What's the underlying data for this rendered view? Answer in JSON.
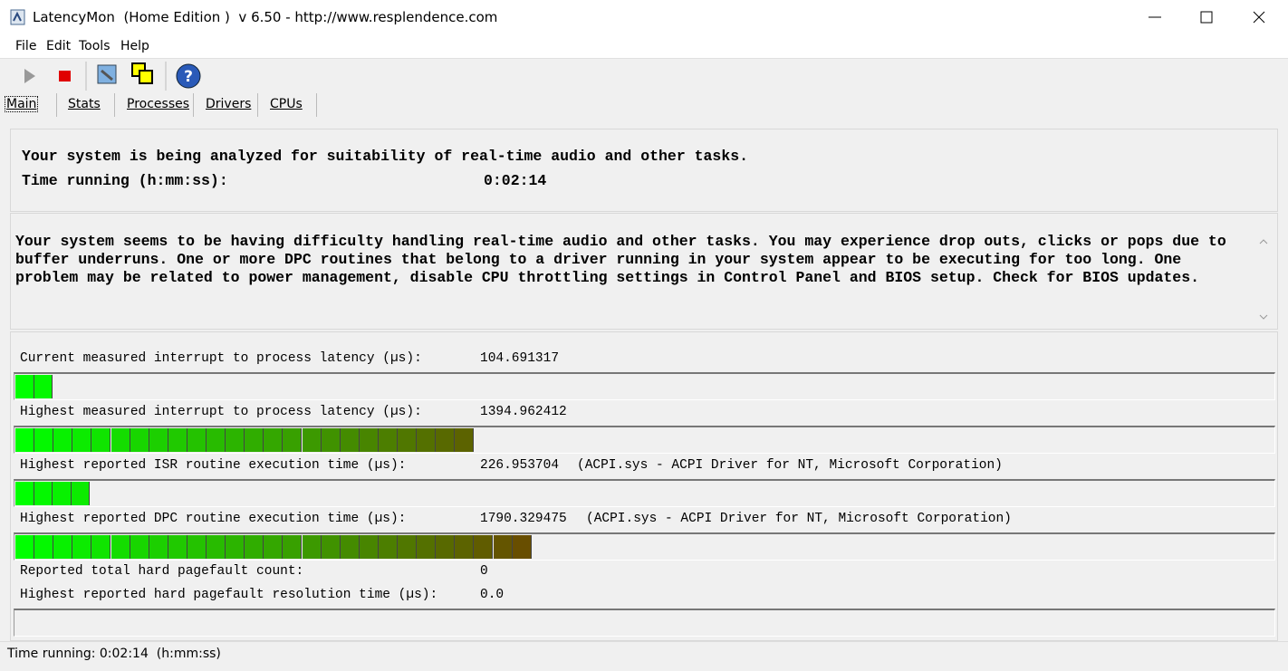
{
  "window": {
    "title": "LatencyMon  (Home Edition )  v 6.50 - http://www.resplendence.com"
  },
  "menu": [
    "File",
    "Edit",
    "Tools",
    "Help"
  ],
  "tabs": [
    "Main",
    "Stats",
    "Processes",
    "Drivers",
    "CPUs"
  ],
  "status": {
    "message": "Your system is being analyzed for suitability of real-time audio and other tasks.",
    "time_label": "Time running (h:mm:ss):",
    "time_value": "0:02:14"
  },
  "advice": [
    "Your system seems to be having difficulty handling real-time audio and other tasks. You may experience drop outs, clicks or pops due to",
    "buffer underruns. One or more DPC routines that belong to a driver running in your system appear to be executing for too long. One",
    "problem may be related to power management, disable CPU throttling settings in Control Panel and BIOS setup. Check for BIOS updates."
  ],
  "metrics": [
    {
      "label": "Current measured interrupt to process latency (µs):",
      "value": "104.691317",
      "segments": 2
    },
    {
      "label": "Highest measured interrupt to process latency (µs):",
      "value": "1394.962412",
      "segments": 24
    },
    {
      "label": "Highest reported ISR routine execution time (µs):",
      "value": "226.953704",
      "detail": "(ACPI.sys - ACPI Driver for NT, Microsoft Corporation)",
      "segments": 4
    },
    {
      "label": "Highest reported DPC routine execution time (µs):",
      "value": "1790.329475",
      "detail": "(ACPI.sys - ACPI Driver for NT, Microsoft Corporation)",
      "segments": 27
    }
  ],
  "pagefaults": [
    {
      "label": "Reported total hard pagefault count:",
      "value": "0"
    },
    {
      "label": "Highest reported hard pagefault resolution time (µs):",
      "value": "0.0"
    }
  ],
  "status_bar": "Time running: 0:02:14  (h:mm:ss)"
}
